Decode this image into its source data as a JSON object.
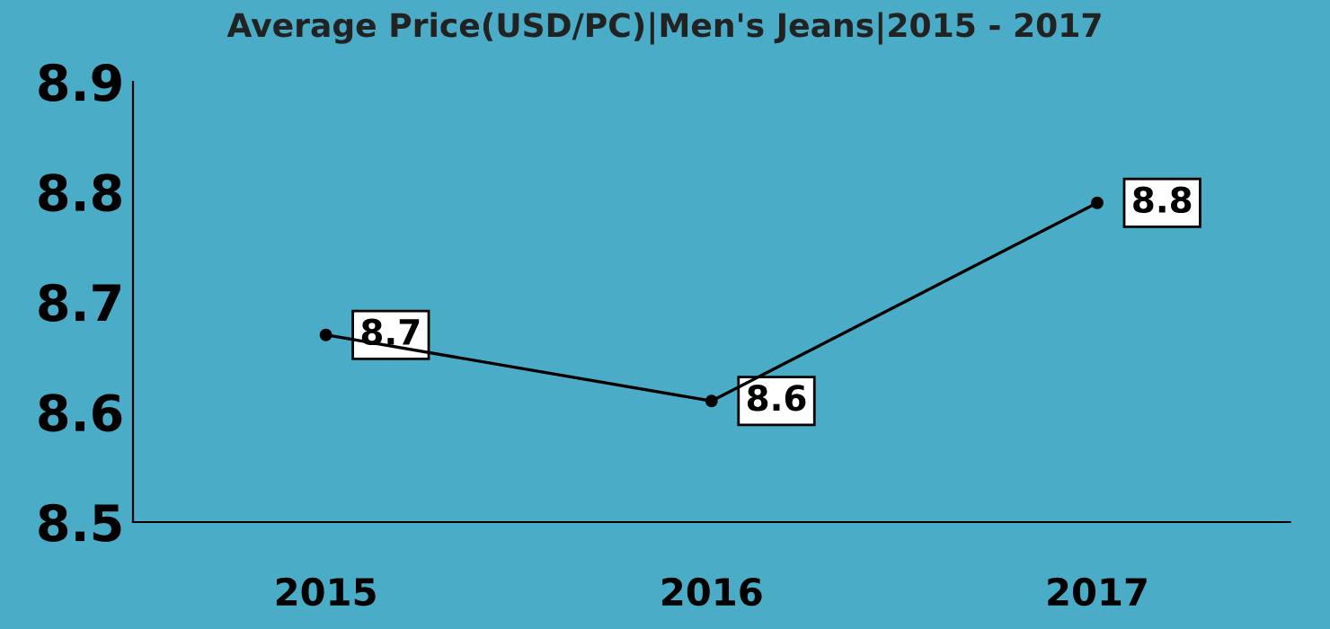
{
  "chart_data": {
    "type": "line",
    "title": "Average Price(USD/PC)|Men's Jeans|2015 - 2017",
    "categories": [
      "2015",
      "2016",
      "2017"
    ],
    "series": [
      {
        "color": "#000000",
        "values": [
          8.67,
          8.61,
          8.79
        ],
        "value_labels": [
          "8.7",
          "8.6",
          "8.8"
        ]
      }
    ],
    "ylim": [
      8.5,
      8.9
    ],
    "yticks": [
      8.5,
      8.6,
      8.7,
      8.8,
      8.9
    ],
    "grid": false,
    "marker": "circle",
    "line_style": "solid"
  }
}
